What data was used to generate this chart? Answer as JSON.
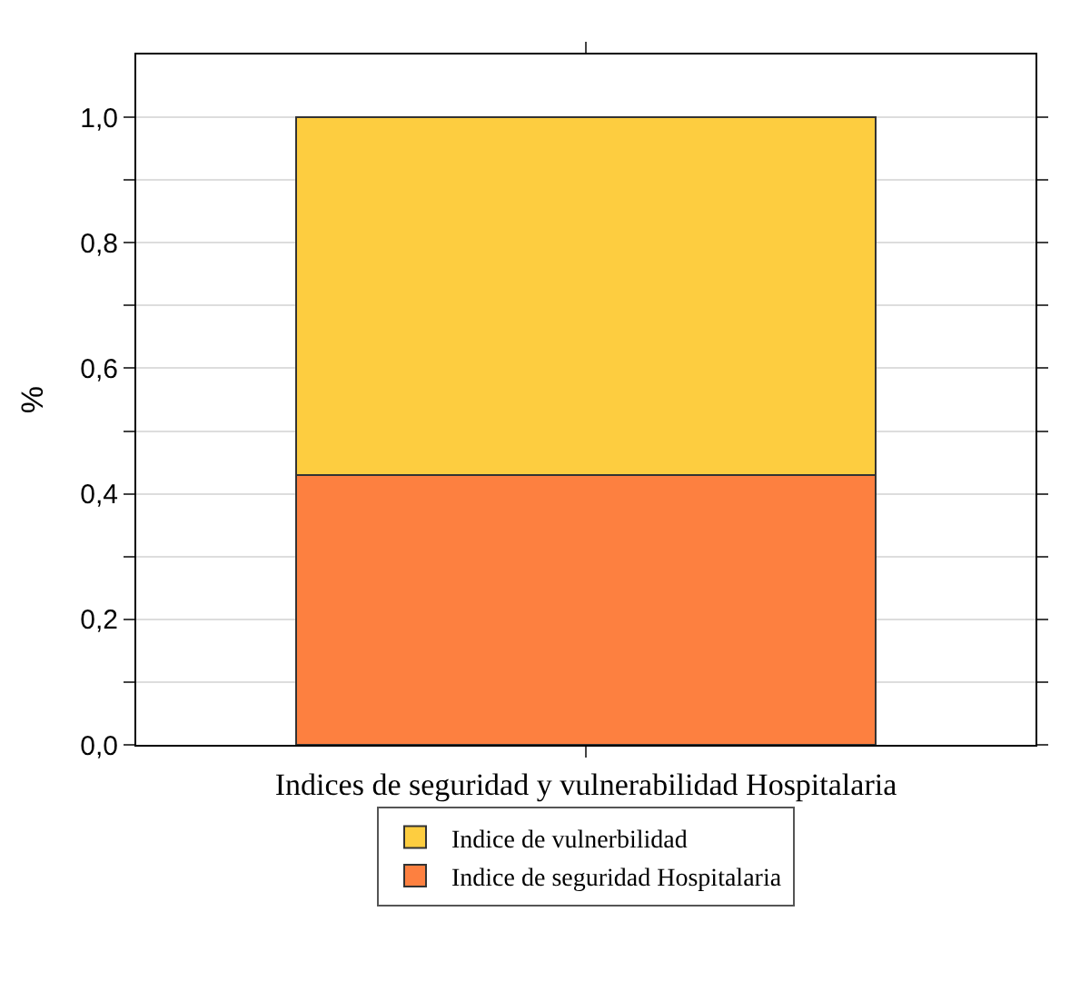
{
  "chart_data": {
    "type": "bar",
    "stacked": true,
    "ylabel": "%",
    "categories": [
      "Indices de seguridad y vulnerabilidad Hospitalaria"
    ],
    "series": [
      {
        "name": "Indice de seguridad Hospitalaria",
        "color": "#fd8040",
        "values": [
          0.43
        ]
      },
      {
        "name": "Indice de vulnerbilidad",
        "color": "#fdcd40",
        "values": [
          0.57
        ]
      }
    ],
    "ylim": [
      0,
      1.1
    ],
    "yticks": [
      {
        "value": 0,
        "label": "0,0"
      },
      {
        "value": 0.1,
        "label": null
      },
      {
        "value": 0.2,
        "label": "0,2"
      },
      {
        "value": 0.3,
        "label": null
      },
      {
        "value": 0.4,
        "label": "0,4"
      },
      {
        "value": 0.5,
        "label": null
      },
      {
        "value": 0.6,
        "label": "0,6"
      },
      {
        "value": 0.7,
        "label": null
      },
      {
        "value": 0.8,
        "label": "0,8"
      },
      {
        "value": 0.9,
        "label": null
      },
      {
        "value": 1.0,
        "label": "1,0"
      }
    ],
    "grid": "y",
    "legend": "bottom"
  }
}
